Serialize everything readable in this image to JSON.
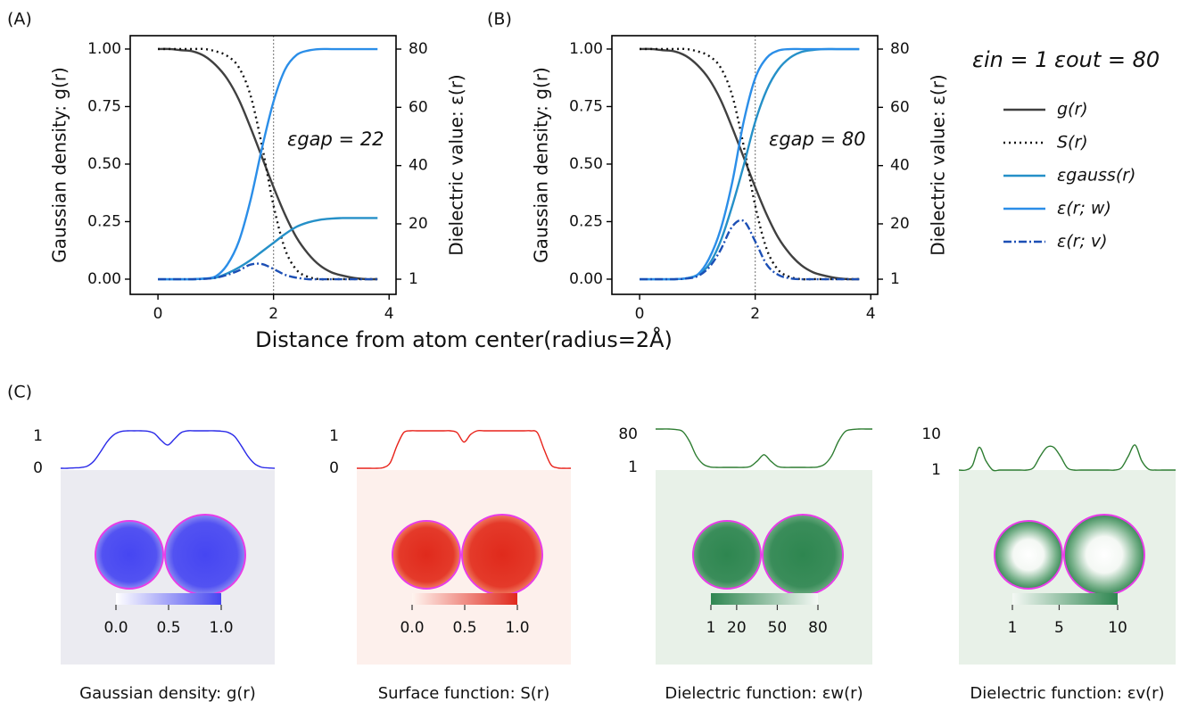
{
  "figure": {
    "panel_labels": [
      "(A)",
      "(B)",
      "(C)"
    ],
    "xlabel": "Distance from atom center(radius=2Å)",
    "legend_title": [
      "εin = 1",
      "εout = 80"
    ]
  },
  "chart_data": [
    {
      "type": "line",
      "ylabel": "Gaussian density: g(r)",
      "y2label": "Dielectric value: ε(r)",
      "annotation": "εgap = 22",
      "x": [
        0,
        0.2,
        0.4,
        0.6,
        0.8,
        1.0,
        1.2,
        1.4,
        1.6,
        1.8,
        2.0,
        2.2,
        2.4,
        2.6,
        2.8,
        3.0,
        3.2,
        3.4,
        3.6,
        3.8
      ],
      "xlim": [
        -0.48,
        4.12
      ],
      "xticks": [
        0,
        2,
        4
      ],
      "ylim": [
        -0.066,
        1.058
      ],
      "yticks": [
        {
          "value": 0,
          "label": "0.00"
        },
        {
          "value": 0.25,
          "label": "0.25"
        },
        {
          "value": 0.5,
          "label": "0.50"
        },
        {
          "value": 0.75,
          "label": "0.75"
        },
        {
          "value": 1,
          "label": "1.00"
        }
      ],
      "y2lim": [
        -4.2,
        84.6
      ],
      "y2ticks": [
        1,
        20,
        40,
        60,
        80
      ],
      "y2color": "#1e88e5",
      "vline": 2,
      "series": [
        {
          "color": "#404040",
          "dash": "solid",
          "values": [
            1,
            1,
            0.995,
            0.99,
            0.97,
            0.93,
            0.87,
            0.78,
            0.66,
            0.53,
            0.4,
            0.28,
            0.18,
            0.11,
            0.06,
            0.03,
            0.015,
            0.005,
            0,
            0
          ]
        },
        {
          "color": "#111111",
          "dash": "dotted",
          "values": [
            1,
            1,
            1,
            1,
            1,
            0.99,
            0.97,
            0.92,
            0.8,
            0.58,
            0.32,
            0.13,
            0.04,
            0.01,
            0,
            0,
            0,
            0,
            0,
            0
          ]
        },
        {
          "color": "#2590c8",
          "dash": "solid",
          "axis": "y2",
          "values": [
            1,
            1,
            1,
            1,
            1.2,
            1.5,
            3,
            5,
            7.5,
            10.5,
            13.5,
            16.5,
            19,
            20.5,
            21.4,
            21.8,
            22,
            22,
            22,
            22
          ]
        },
        {
          "color": "#2b8ee8",
          "dash": "solid",
          "axis": "y2",
          "values": [
            1,
            1,
            1,
            1,
            1.2,
            2,
            6,
            14,
            28,
            46,
            62,
            73,
            78,
            79.5,
            80,
            80,
            80,
            80,
            80,
            80
          ]
        },
        {
          "color": "#1c4fb5",
          "dash": "dashdot",
          "axis": "y2",
          "values": [
            1,
            1,
            1,
            1,
            1.1,
            1.5,
            2.5,
            4,
            6,
            6.2,
            4.5,
            2.5,
            1.5,
            1,
            1,
            1,
            1,
            1,
            1,
            1
          ]
        }
      ]
    },
    {
      "type": "line",
      "ylabel": "Gaussian density: g(r)",
      "y2label": "Dielectric value: ε(r)",
      "annotation": "εgap = 80",
      "legend": "right",
      "x": [
        0,
        0.2,
        0.4,
        0.6,
        0.8,
        1.0,
        1.2,
        1.4,
        1.6,
        1.8,
        2.0,
        2.2,
        2.4,
        2.6,
        2.8,
        3.0,
        3.2,
        3.4,
        3.6,
        3.8
      ],
      "xlim": [
        -0.48,
        4.12
      ],
      "xticks": [
        0,
        2,
        4
      ],
      "ylim": [
        -0.066,
        1.058
      ],
      "yticks": [
        {
          "value": 0,
          "label": "0.00"
        },
        {
          "value": 0.25,
          "label": "0.25"
        },
        {
          "value": 0.5,
          "label": "0.50"
        },
        {
          "value": 0.75,
          "label": "0.75"
        },
        {
          "value": 1,
          "label": "1.00"
        }
      ],
      "y2lim": [
        -4.2,
        84.6
      ],
      "y2ticks": [
        1,
        20,
        40,
        60,
        80
      ],
      "y2color": "#1e88e5",
      "vline": 2,
      "series": [
        {
          "name": "g(r)",
          "color": "#404040",
          "dash": "solid",
          "values": [
            1,
            1,
            0.995,
            0.99,
            0.97,
            0.93,
            0.87,
            0.78,
            0.66,
            0.53,
            0.4,
            0.28,
            0.18,
            0.11,
            0.06,
            0.03,
            0.015,
            0.005,
            0,
            0
          ]
        },
        {
          "name": "S(r)",
          "color": "#111111",
          "dash": "dotted",
          "values": [
            1,
            1,
            1,
            1,
            1,
            0.99,
            0.97,
            0.92,
            0.8,
            0.58,
            0.32,
            0.13,
            0.04,
            0.01,
            0,
            0,
            0,
            0,
            0,
            0
          ]
        },
        {
          "name": "εgauss(r)",
          "color": "#2590c8",
          "dash": "solid",
          "axis": "y2",
          "values": [
            1,
            1,
            1,
            1,
            1.3,
            2.5,
            6,
            14,
            26,
            40,
            55,
            66,
            73,
            77,
            79,
            79.7,
            80,
            80,
            80,
            80
          ]
        },
        {
          "name": "ε(r; w)",
          "color": "#2b8ee8",
          "dash": "solid",
          "axis": "y2",
          "values": [
            1,
            1,
            1,
            1,
            1.3,
            2.5,
            8,
            18,
            34,
            55,
            70,
            77,
            79.5,
            80,
            80,
            80,
            80,
            80,
            80,
            80
          ]
        },
        {
          "name": "ε(r; v)",
          "color": "#1c4fb5",
          "dash": "dashdot",
          "axis": "y2",
          "values": [
            1,
            1,
            1,
            1,
            1.2,
            2,
            5,
            11,
            19,
            21,
            14,
            6,
            2.5,
            1.3,
            1,
            1,
            1,
            1,
            1,
            1
          ]
        }
      ]
    },
    {
      "type": "profile",
      "caption": "Gaussian density: g(r)",
      "color": "#2a2ae8",
      "ylim": [
        0,
        1
      ],
      "yticks": [
        0,
        1
      ],
      "values": [
        0,
        0,
        0.01,
        0.02,
        0.06,
        0.2,
        0.45,
        0.72,
        0.9,
        0.98,
        1,
        1,
        1,
        0.99,
        0.93,
        0.75,
        0.62,
        0.78,
        0.95,
        1,
        1,
        1,
        1,
        1,
        0.99,
        0.96,
        0.85,
        0.6,
        0.32,
        0.12,
        0.03,
        0.01,
        0
      ],
      "colorbar": {
        "colors": [
          "#ffffff",
          "#4646f0"
        ],
        "lim": [
          0,
          1
        ],
        "ticks": [
          {
            "value": 0,
            "label": "0.0"
          },
          {
            "value": 0.5,
            "label": "0.5"
          },
          {
            "value": 1,
            "label": "1.0"
          }
        ]
      }
    },
    {
      "type": "profile",
      "caption": "Surface function: S(r)",
      "color": "#e8221a",
      "ylim": [
        0,
        1
      ],
      "yticks": [
        0,
        1
      ],
      "values": [
        0,
        0,
        0,
        0,
        0.02,
        0.15,
        0.6,
        0.95,
        1,
        1,
        1,
        1,
        1,
        1,
        1,
        0.95,
        0.7,
        0.9,
        1,
        1,
        1,
        1,
        1,
        1,
        1,
        1,
        1,
        0.95,
        0.5,
        0.1,
        0.01,
        0,
        0
      ],
      "colorbar": {
        "colors": [
          "#fff4ef",
          "#e0281c"
        ],
        "lim": [
          0,
          1
        ],
        "ticks": [
          {
            "value": 0,
            "label": "0.0"
          },
          {
            "value": 0.5,
            "label": "0.5"
          },
          {
            "value": 1,
            "label": "1.0"
          }
        ]
      }
    },
    {
      "type": "profile",
      "caption": "Dielectric function: εw(r)",
      "color": "#2e7d32",
      "ylim": [
        1,
        80
      ],
      "yticks": [
        1,
        80
      ],
      "values": [
        80,
        80,
        80,
        79,
        75,
        55,
        25,
        8,
        2,
        1,
        1,
        1,
        1,
        1,
        3,
        14,
        27,
        14,
        3,
        1,
        1,
        1,
        1,
        1,
        2,
        8,
        25,
        55,
        75,
        79,
        80,
        80,
        80
      ],
      "colorbar": {
        "colors": [
          "#2e8650",
          "#f4f8f4"
        ],
        "lim": [
          1,
          80
        ],
        "ticks": [
          1,
          20,
          50,
          80
        ]
      }
    },
    {
      "type": "profile",
      "caption": "Dielectric function: εv(r)",
      "color": "#2e7d32",
      "ylim": [
        1,
        10
      ],
      "yticks": [
        1,
        10
      ],
      "values": [
        1,
        1,
        2,
        6,
        3,
        1,
        1,
        1,
        1,
        1,
        1,
        1.5,
        4,
        6,
        6,
        4,
        1.5,
        1,
        1,
        1,
        1,
        1,
        1,
        1,
        1.5,
        4,
        6.5,
        3,
        1.2,
        1,
        1,
        1,
        1
      ],
      "colorbar": {
        "colors": [
          "#f4f8f4",
          "#2e8650"
        ],
        "lim": [
          1,
          10
        ],
        "ticks": [
          1,
          5,
          10
        ]
      }
    }
  ]
}
